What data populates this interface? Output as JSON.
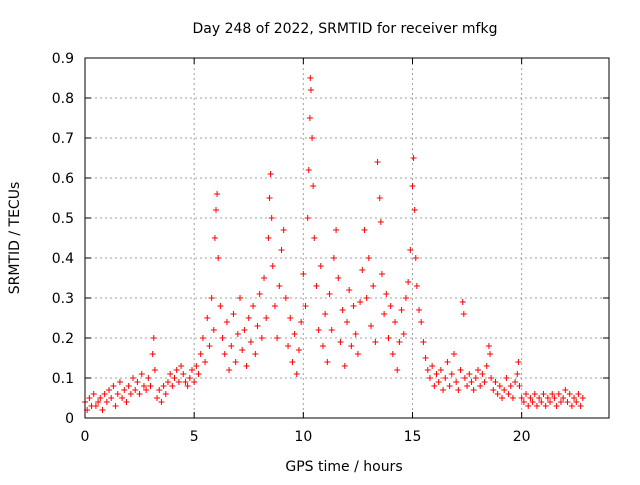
{
  "chart_data": {
    "type": "scatter",
    "title": "Day 248 of 2022, SRMTID for receiver mfkg",
    "xlabel": "GPS time / hours",
    "ylabel": "SRMTID / TECUs",
    "xlim": [
      0,
      24
    ],
    "ylim": [
      0,
      0.9
    ],
    "x_ticks": [
      0,
      5,
      10,
      15,
      20
    ],
    "x_tick_labels": [
      "0",
      "5",
      "10",
      "15",
      "20"
    ],
    "y_ticks": [
      0,
      0.1,
      0.2,
      0.3,
      0.4,
      0.5,
      0.6,
      0.7,
      0.8,
      0.9
    ],
    "y_tick_labels": [
      "0",
      "0.1",
      "0.2",
      "0.3",
      "0.4",
      "0.5",
      "0.6",
      "0.7",
      "0.8",
      "0.9"
    ],
    "grid": true,
    "marker": "+",
    "colors": {
      "series": "#ff0000",
      "grid": "#a0a0a0",
      "axes": "#000000"
    },
    "series": [
      {
        "name": "SRMTID",
        "points": [
          [
            0.0,
            0.04
          ],
          [
            0.1,
            0.02
          ],
          [
            0.2,
            0.05
          ],
          [
            0.3,
            0.03
          ],
          [
            0.4,
            0.06
          ],
          [
            0.5,
            0.03
          ],
          [
            0.6,
            0.04
          ],
          [
            0.7,
            0.05
          ],
          [
            0.8,
            0.02
          ],
          [
            0.9,
            0.06
          ],
          [
            1.0,
            0.04
          ],
          [
            1.1,
            0.07
          ],
          [
            1.2,
            0.05
          ],
          [
            1.3,
            0.08
          ],
          [
            1.4,
            0.03
          ],
          [
            1.5,
            0.06
          ],
          [
            1.6,
            0.09
          ],
          [
            1.7,
            0.05
          ],
          [
            1.8,
            0.07
          ],
          [
            1.9,
            0.04
          ],
          [
            2.0,
            0.08
          ],
          [
            2.1,
            0.06
          ],
          [
            2.2,
            0.1
          ],
          [
            2.3,
            0.07
          ],
          [
            2.4,
            0.09
          ],
          [
            2.5,
            0.06
          ],
          [
            2.6,
            0.11
          ],
          [
            2.7,
            0.08
          ],
          [
            2.8,
            0.07
          ],
          [
            2.9,
            0.1
          ],
          [
            3.0,
            0.08
          ],
          [
            3.1,
            0.16
          ],
          [
            3.15,
            0.2
          ],
          [
            3.2,
            0.12
          ],
          [
            3.3,
            0.05
          ],
          [
            3.4,
            0.07
          ],
          [
            3.5,
            0.04
          ],
          [
            3.6,
            0.08
          ],
          [
            3.7,
            0.06
          ],
          [
            3.8,
            0.09
          ],
          [
            3.9,
            0.11
          ],
          [
            4.0,
            0.08
          ],
          [
            4.1,
            0.1
          ],
          [
            4.2,
            0.12
          ],
          [
            4.3,
            0.09
          ],
          [
            4.4,
            0.13
          ],
          [
            4.5,
            0.11
          ],
          [
            4.6,
            0.09
          ],
          [
            4.7,
            0.08
          ],
          [
            4.8,
            0.1
          ],
          [
            4.9,
            0.12
          ],
          [
            5.0,
            0.09
          ],
          [
            5.1,
            0.13
          ],
          [
            5.2,
            0.11
          ],
          [
            5.3,
            0.16
          ],
          [
            5.4,
            0.2
          ],
          [
            5.5,
            0.14
          ],
          [
            5.6,
            0.25
          ],
          [
            5.7,
            0.18
          ],
          [
            5.8,
            0.3
          ],
          [
            5.9,
            0.22
          ],
          [
            5.95,
            0.45
          ],
          [
            6.0,
            0.52
          ],
          [
            6.05,
            0.56
          ],
          [
            6.1,
            0.4
          ],
          [
            6.2,
            0.28
          ],
          [
            6.3,
            0.2
          ],
          [
            6.4,
            0.16
          ],
          [
            6.5,
            0.24
          ],
          [
            6.6,
            0.12
          ],
          [
            6.7,
            0.18
          ],
          [
            6.8,
            0.26
          ],
          [
            6.9,
            0.14
          ],
          [
            7.0,
            0.21
          ],
          [
            7.1,
            0.3
          ],
          [
            7.2,
            0.17
          ],
          [
            7.3,
            0.22
          ],
          [
            7.4,
            0.13
          ],
          [
            7.5,
            0.25
          ],
          [
            7.6,
            0.19
          ],
          [
            7.7,
            0.28
          ],
          [
            7.8,
            0.16
          ],
          [
            7.9,
            0.23
          ],
          [
            8.0,
            0.31
          ],
          [
            8.1,
            0.2
          ],
          [
            8.2,
            0.35
          ],
          [
            8.3,
            0.25
          ],
          [
            8.4,
            0.45
          ],
          [
            8.45,
            0.55
          ],
          [
            8.5,
            0.61
          ],
          [
            8.55,
            0.5
          ],
          [
            8.6,
            0.38
          ],
          [
            8.7,
            0.28
          ],
          [
            8.8,
            0.2
          ],
          [
            8.9,
            0.33
          ],
          [
            9.0,
            0.42
          ],
          [
            9.1,
            0.47
          ],
          [
            9.2,
            0.3
          ],
          [
            9.3,
            0.18
          ],
          [
            9.4,
            0.25
          ],
          [
            9.5,
            0.14
          ],
          [
            9.6,
            0.21
          ],
          [
            9.7,
            0.11
          ],
          [
            9.8,
            0.17
          ],
          [
            9.9,
            0.24
          ],
          [
            10.0,
            0.36
          ],
          [
            10.1,
            0.28
          ],
          [
            10.2,
            0.5
          ],
          [
            10.25,
            0.62
          ],
          [
            10.3,
            0.75
          ],
          [
            10.32,
            0.85
          ],
          [
            10.35,
            0.82
          ],
          [
            10.4,
            0.7
          ],
          [
            10.45,
            0.58
          ],
          [
            10.5,
            0.45
          ],
          [
            10.6,
            0.33
          ],
          [
            10.7,
            0.22
          ],
          [
            10.8,
            0.38
          ],
          [
            10.9,
            0.18
          ],
          [
            11.0,
            0.26
          ],
          [
            11.1,
            0.14
          ],
          [
            11.2,
            0.31
          ],
          [
            11.3,
            0.22
          ],
          [
            11.4,
            0.4
          ],
          [
            11.5,
            0.47
          ],
          [
            11.6,
            0.35
          ],
          [
            11.7,
            0.19
          ],
          [
            11.8,
            0.27
          ],
          [
            11.9,
            0.13
          ],
          [
            12.0,
            0.24
          ],
          [
            12.1,
            0.32
          ],
          [
            12.2,
            0.18
          ],
          [
            12.3,
            0.28
          ],
          [
            12.4,
            0.21
          ],
          [
            12.5,
            0.16
          ],
          [
            12.6,
            0.29
          ],
          [
            12.7,
            0.37
          ],
          [
            12.8,
            0.47
          ],
          [
            12.9,
            0.3
          ],
          [
            13.0,
            0.4
          ],
          [
            13.1,
            0.23
          ],
          [
            13.2,
            0.33
          ],
          [
            13.3,
            0.19
          ],
          [
            13.4,
            0.64
          ],
          [
            13.5,
            0.55
          ],
          [
            13.55,
            0.49
          ],
          [
            13.6,
            0.36
          ],
          [
            13.7,
            0.26
          ],
          [
            13.8,
            0.31
          ],
          [
            13.9,
            0.2
          ],
          [
            14.0,
            0.28
          ],
          [
            14.1,
            0.16
          ],
          [
            14.2,
            0.24
          ],
          [
            14.3,
            0.12
          ],
          [
            14.4,
            0.19
          ],
          [
            14.5,
            0.27
          ],
          [
            14.6,
            0.21
          ],
          [
            14.7,
            0.3
          ],
          [
            14.8,
            0.34
          ],
          [
            14.9,
            0.42
          ],
          [
            15.0,
            0.58
          ],
          [
            15.05,
            0.65
          ],
          [
            15.1,
            0.52
          ],
          [
            15.15,
            0.4
          ],
          [
            15.2,
            0.33
          ],
          [
            15.3,
            0.27
          ],
          [
            15.4,
            0.24
          ],
          [
            15.5,
            0.19
          ],
          [
            15.6,
            0.15
          ],
          [
            15.7,
            0.12
          ],
          [
            15.8,
            0.1
          ],
          [
            15.9,
            0.13
          ],
          [
            16.0,
            0.08
          ],
          [
            16.1,
            0.11
          ],
          [
            16.2,
            0.09
          ],
          [
            16.3,
            0.12
          ],
          [
            16.4,
            0.07
          ],
          [
            16.5,
            0.1
          ],
          [
            16.6,
            0.14
          ],
          [
            16.7,
            0.08
          ],
          [
            16.8,
            0.11
          ],
          [
            16.9,
            0.16
          ],
          [
            17.0,
            0.09
          ],
          [
            17.1,
            0.07
          ],
          [
            17.2,
            0.12
          ],
          [
            17.3,
            0.29
          ],
          [
            17.35,
            0.26
          ],
          [
            17.4,
            0.1
          ],
          [
            17.5,
            0.08
          ],
          [
            17.6,
            0.11
          ],
          [
            17.7,
            0.09
          ],
          [
            17.8,
            0.07
          ],
          [
            17.9,
            0.1
          ],
          [
            18.0,
            0.12
          ],
          [
            18.1,
            0.08
          ],
          [
            18.2,
            0.11
          ],
          [
            18.3,
            0.09
          ],
          [
            18.4,
            0.13
          ],
          [
            18.5,
            0.18
          ],
          [
            18.55,
            0.16
          ],
          [
            18.6,
            0.1
          ],
          [
            18.7,
            0.07
          ],
          [
            18.8,
            0.09
          ],
          [
            18.9,
            0.06
          ],
          [
            19.0,
            0.08
          ],
          [
            19.1,
            0.05
          ],
          [
            19.2,
            0.07
          ],
          [
            19.3,
            0.1
          ],
          [
            19.4,
            0.06
          ],
          [
            19.5,
            0.08
          ],
          [
            19.6,
            0.05
          ],
          [
            19.7,
            0.09
          ],
          [
            19.8,
            0.11
          ],
          [
            19.85,
            0.14
          ],
          [
            19.9,
            0.08
          ],
          [
            20.0,
            0.05
          ],
          [
            20.1,
            0.04
          ],
          [
            20.2,
            0.06
          ],
          [
            20.3,
            0.03
          ],
          [
            20.4,
            0.05
          ],
          [
            20.5,
            0.04
          ],
          [
            20.6,
            0.06
          ],
          [
            20.7,
            0.03
          ],
          [
            20.8,
            0.05
          ],
          [
            20.9,
            0.04
          ],
          [
            21.0,
            0.06
          ],
          [
            21.1,
            0.03
          ],
          [
            21.2,
            0.05
          ],
          [
            21.3,
            0.04
          ],
          [
            21.4,
            0.06
          ],
          [
            21.5,
            0.05
          ],
          [
            21.6,
            0.03
          ],
          [
            21.7,
            0.06
          ],
          [
            21.8,
            0.04
          ],
          [
            21.9,
            0.05
          ],
          [
            22.0,
            0.07
          ],
          [
            22.1,
            0.04
          ],
          [
            22.2,
            0.06
          ],
          [
            22.3,
            0.03
          ],
          [
            22.4,
            0.05
          ],
          [
            22.5,
            0.04
          ],
          [
            22.6,
            0.06
          ],
          [
            22.7,
            0.03
          ],
          [
            22.8,
            0.05
          ]
        ]
      }
    ]
  }
}
